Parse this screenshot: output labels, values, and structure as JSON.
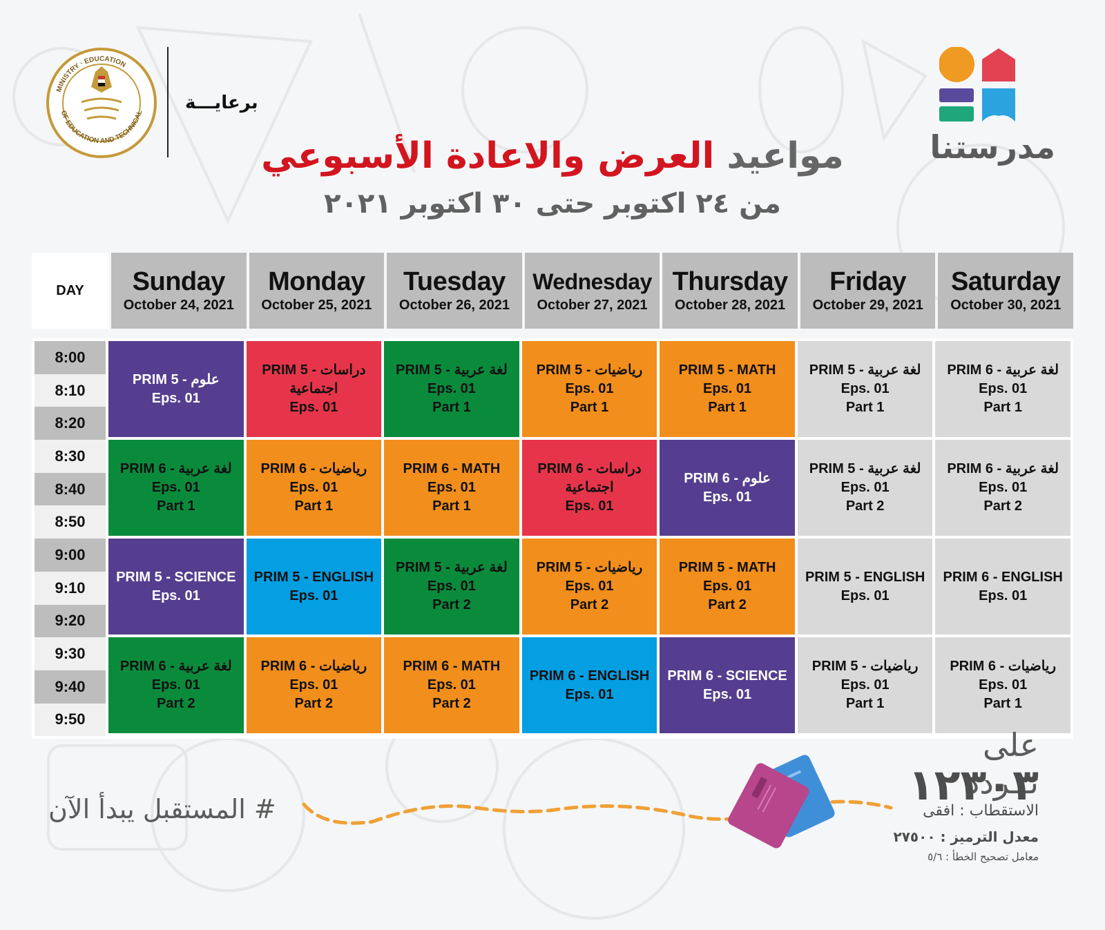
{
  "header": {
    "sponsor_label": "برعايـــة",
    "ministry_logo_text": "MINISTRY OF EDUCATION AND TECHNICAL EDUCATION",
    "brand_name": "مدرستنا",
    "title_part1": "مواعيد ",
    "title_highlight": "العرض والاعادة الأسبوعي",
    "subtitle": "من ٢٤ اكتوبر حتى ٣٠ اكتوبر ٢٠٢١",
    "colors": {
      "title_red": "#d2151f",
      "title_grey": "#666666"
    }
  },
  "table": {
    "day_label": "DAY",
    "days": [
      {
        "name": "Sunday",
        "date": "October 24, 2021"
      },
      {
        "name": "Monday",
        "date": "October 25, 2021"
      },
      {
        "name": "Tuesday",
        "date": "October 26, 2021"
      },
      {
        "name": "Wednesday",
        "date": "October 27, 2021"
      },
      {
        "name": "Thursday",
        "date": "October 28, 2021"
      },
      {
        "name": "Friday",
        "date": "October 29, 2021"
      },
      {
        "name": "Saturday",
        "date": "October 30, 2021"
      }
    ],
    "times": [
      "8:00",
      "8:10",
      "8:20",
      "8:30",
      "8:40",
      "8:50",
      "9:00",
      "9:10",
      "9:20",
      "9:30",
      "9:40",
      "9:50"
    ],
    "slots": [
      [
        {
          "title": "PRIM 5 - علوم",
          "ep": "Eps. 01",
          "part": "",
          "color": "purple"
        },
        {
          "title": "PRIM 5 - دراسات اجتماعية",
          "ep": "Eps. 01",
          "part": "",
          "color": "red"
        },
        {
          "title": "PRIM 5 - لغة عربية",
          "ep": "Eps. 01",
          "part": "Part 1",
          "color": "green"
        },
        {
          "title": "PRIM 5 - رياضيات",
          "ep": "Eps. 01",
          "part": "Part 1",
          "color": "orange"
        },
        {
          "title": "PRIM 5 - MATH",
          "ep": "Eps. 01",
          "part": "Part 1",
          "color": "orange"
        },
        {
          "title": "PRIM 5 - لغة عربية",
          "ep": "Eps. 01",
          "part": "Part 1",
          "color": "grey"
        },
        {
          "title": "PRIM 6 - لغة عربية",
          "ep": "Eps. 01",
          "part": "Part 1",
          "color": "grey"
        }
      ],
      [
        {
          "title": "PRIM 6 - لغة عربية",
          "ep": "Eps. 01",
          "part": "Part 1",
          "color": "green"
        },
        {
          "title": "PRIM 6 - رياضيات",
          "ep": "Eps. 01",
          "part": "Part 1",
          "color": "orange"
        },
        {
          "title": "PRIM 6 - MATH",
          "ep": "Eps. 01",
          "part": "Part 1",
          "color": "orange"
        },
        {
          "title": "PRIM 6 - دراسات اجتماعية",
          "ep": "Eps. 01",
          "part": "",
          "color": "red"
        },
        {
          "title": "PRIM 6 - علوم",
          "ep": "Eps. 01",
          "part": "",
          "color": "purple"
        },
        {
          "title": "PRIM 5 - لغة عربية",
          "ep": "Eps. 01",
          "part": "Part 2",
          "color": "grey"
        },
        {
          "title": "PRIM 6 - لغة عربية",
          "ep": "Eps. 01",
          "part": "Part 2",
          "color": "grey"
        }
      ],
      [
        {
          "title": "PRIM 5 - SCIENCE",
          "ep": "Eps. 01",
          "part": "",
          "color": "purple"
        },
        {
          "title": "PRIM 5 - ENGLISH",
          "ep": "Eps. 01",
          "part": "",
          "color": "blue"
        },
        {
          "title": "PRIM 5 - لغة عربية",
          "ep": "Eps. 01",
          "part": "Part 2",
          "color": "green"
        },
        {
          "title": "PRIM 5 - رياضيات",
          "ep": "Eps. 01",
          "part": "Part 2",
          "color": "orange"
        },
        {
          "title": "PRIM 5 - MATH",
          "ep": "Eps. 01",
          "part": "Part 2",
          "color": "orange"
        },
        {
          "title": "PRIM 5 - ENGLISH",
          "ep": "Eps. 01",
          "part": "",
          "color": "grey"
        },
        {
          "title": "PRIM 6 - ENGLISH",
          "ep": "Eps. 01",
          "part": "",
          "color": "grey"
        }
      ],
      [
        {
          "title": "PRIM 6 - لغة عربية",
          "ep": "Eps. 01",
          "part": "Part 2",
          "color": "green"
        },
        {
          "title": "PRIM 6 - رياضيات",
          "ep": "Eps. 01",
          "part": "Part 2",
          "color": "orange"
        },
        {
          "title": "PRIM 6 - MATH",
          "ep": "Eps. 01",
          "part": "Part 2",
          "color": "orange"
        },
        {
          "title": "PRIM 6 - ENGLISH",
          "ep": "Eps. 01",
          "part": "",
          "color": "blue"
        },
        {
          "title": "PRIM 6 - SCIENCE",
          "ep": "Eps. 01",
          "part": "",
          "color": "purple"
        },
        {
          "title": "PRIM 5 - رياضيات",
          "ep": "Eps. 01",
          "part": "Part 1",
          "color": "grey"
        },
        {
          "title": "PRIM 6 - رياضيات",
          "ep": "Eps. 01",
          "part": "Part 1",
          "color": "grey"
        }
      ]
    ],
    "colors": {
      "purple": "#553e8f",
      "red": "#e6354a",
      "green": "#0a8b3c",
      "orange": "#f28e1c",
      "blue": "#049ee2",
      "grey": "#d9d9d9",
      "header_grey": "#bcbcbc"
    }
  },
  "footer": {
    "hashtag": "# المستقبل يبدأ الآن",
    "frequency_label": "على تــردد",
    "frequency_number": "١٢٣٠٣",
    "polarization": "الاستقطاب : افقى",
    "symbol_rate": "معدل الترميز : ٢٧٥٠٠",
    "fec": "معامل تصحيح الخطأ : ٥/٦"
  }
}
